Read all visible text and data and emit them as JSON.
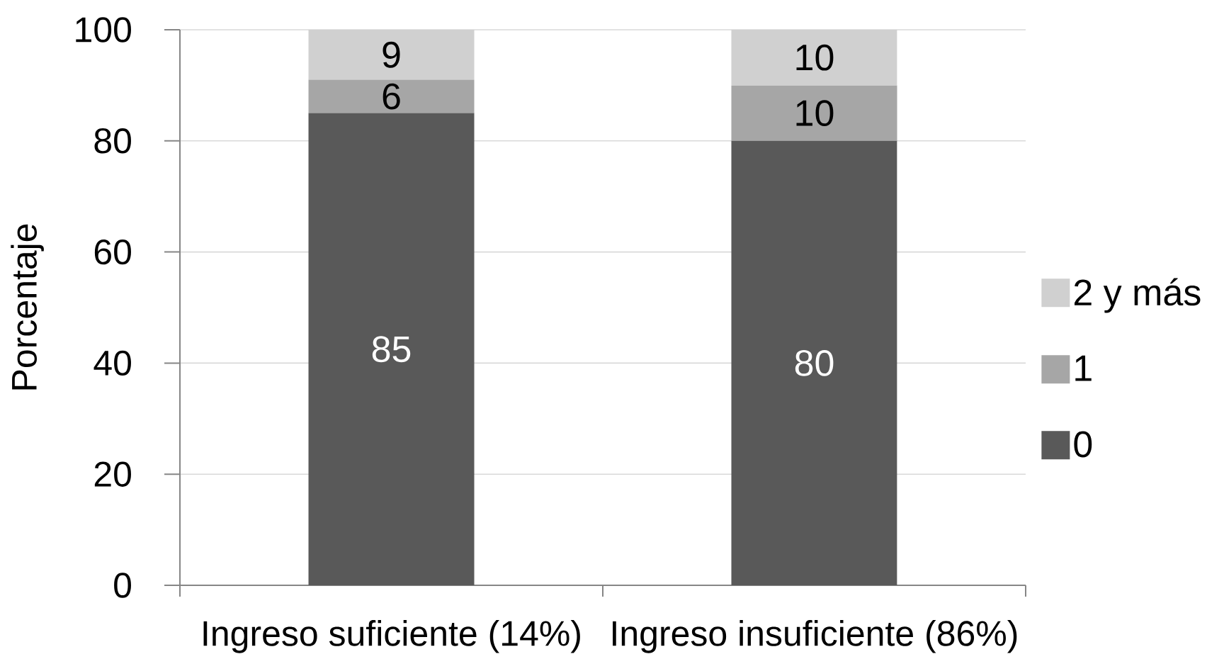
{
  "chart_data": {
    "type": "bar",
    "stacked": true,
    "ylabel": "Porcentaje",
    "categories": [
      "Ingreso suficiente (14%)",
      "Ingreso insuficiente (86%)"
    ],
    "series": [
      {
        "name": "0",
        "color": "#595959",
        "values": [
          85,
          80
        ]
      },
      {
        "name": "1",
        "color": "#a6a6a6",
        "values": [
          6,
          10
        ]
      },
      {
        "name": "2 y más",
        "color": "#d0d0d0",
        "values": [
          9,
          10
        ]
      }
    ],
    "ylim": [
      0,
      100
    ],
    "yticks": [
      0,
      20,
      40,
      60,
      80,
      100
    ],
    "grid": "y",
    "legend": "right",
    "data_labels": true
  }
}
